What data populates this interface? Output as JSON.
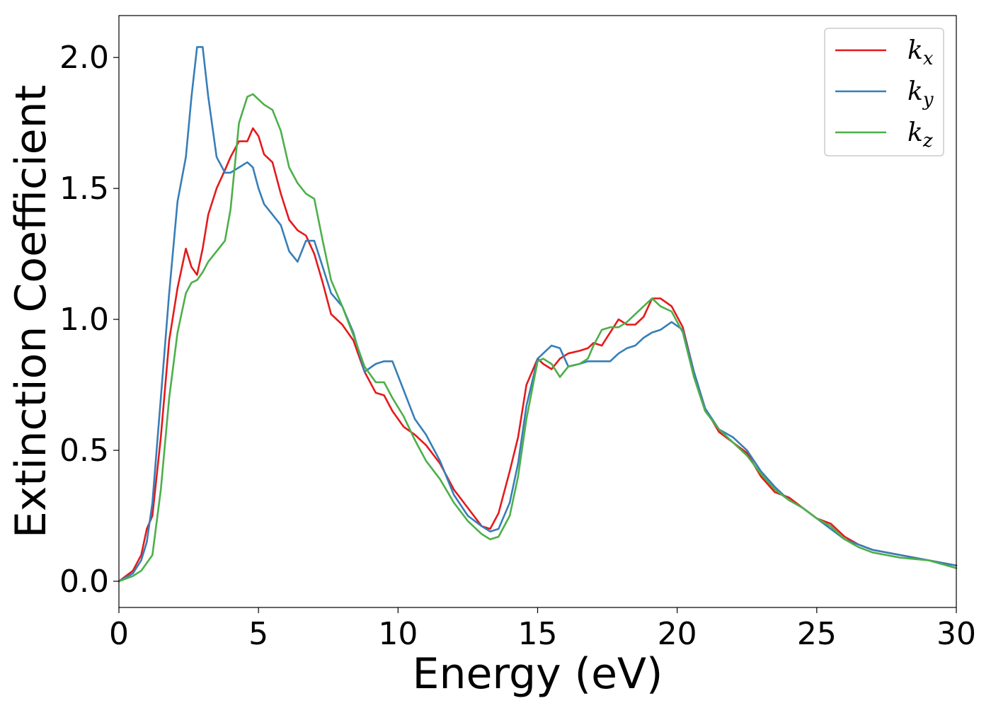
{
  "chart_data": {
    "type": "line",
    "title": "",
    "xlabel": "Energy (eV)",
    "ylabel": "Extinction Coefficient",
    "xlim": [
      0,
      30
    ],
    "ylim": [
      -0.1,
      2.16
    ],
    "xticks": [
      0,
      5,
      10,
      15,
      20,
      25,
      30
    ],
    "xtick_labels": [
      "0",
      "5",
      "10",
      "15",
      "20",
      "25",
      "30"
    ],
    "yticks": [
      0.0,
      0.5,
      1.0,
      1.5,
      2.0
    ],
    "ytick_labels": [
      "0.0",
      "0.5",
      "1.0",
      "1.5",
      "2.0"
    ],
    "grid": false,
    "legend_position": "top-right",
    "series": [
      {
        "name": "k",
        "subscript": "x",
        "color": "#e41a1c",
        "x": [
          0,
          0.5,
          0.8,
          1.0,
          1.2,
          1.5,
          1.8,
          2.1,
          2.4,
          2.6,
          2.8,
          3.0,
          3.2,
          3.5,
          3.8,
          4.0,
          4.3,
          4.6,
          4.8,
          5.0,
          5.2,
          5.5,
          5.8,
          6.1,
          6.4,
          6.7,
          7.0,
          7.3,
          7.6,
          8.0,
          8.4,
          8.8,
          9.2,
          9.5,
          9.8,
          10.2,
          10.6,
          11.0,
          11.5,
          12.0,
          12.5,
          13.0,
          13.3,
          13.6,
          14.0,
          14.3,
          14.6,
          15.0,
          15.2,
          15.5,
          15.8,
          16.1,
          16.5,
          16.8,
          17.0,
          17.3,
          17.6,
          17.9,
          18.2,
          18.5,
          18.8,
          19.1,
          19.4,
          19.8,
          20.2,
          20.6,
          21.0,
          21.5,
          22.0,
          22.5,
          23.0,
          23.5,
          24.0,
          24.5,
          25.0,
          25.5,
          26.0,
          26.5,
          27.0,
          28.0,
          29.0,
          30.0
        ],
        "values": [
          0.0,
          0.04,
          0.1,
          0.2,
          0.25,
          0.55,
          0.92,
          1.12,
          1.27,
          1.2,
          1.17,
          1.27,
          1.4,
          1.5,
          1.57,
          1.62,
          1.68,
          1.68,
          1.73,
          1.7,
          1.63,
          1.6,
          1.48,
          1.38,
          1.34,
          1.32,
          1.25,
          1.14,
          1.02,
          0.98,
          0.92,
          0.8,
          0.72,
          0.71,
          0.65,
          0.59,
          0.56,
          0.52,
          0.45,
          0.35,
          0.28,
          0.21,
          0.2,
          0.26,
          0.42,
          0.55,
          0.75,
          0.85,
          0.83,
          0.81,
          0.85,
          0.87,
          0.88,
          0.89,
          0.91,
          0.9,
          0.95,
          1.0,
          0.98,
          0.98,
          1.01,
          1.08,
          1.08,
          1.05,
          0.97,
          0.8,
          0.66,
          0.57,
          0.53,
          0.49,
          0.4,
          0.34,
          0.32,
          0.28,
          0.24,
          0.22,
          0.17,
          0.14,
          0.12,
          0.1,
          0.08,
          0.06
        ]
      },
      {
        "name": "k",
        "subscript": "y",
        "color": "#377eb8",
        "x": [
          0,
          0.5,
          0.8,
          1.0,
          1.2,
          1.5,
          1.8,
          2.1,
          2.4,
          2.6,
          2.8,
          3.0,
          3.2,
          3.5,
          3.8,
          4.0,
          4.3,
          4.6,
          4.8,
          5.0,
          5.2,
          5.5,
          5.8,
          6.1,
          6.4,
          6.7,
          7.0,
          7.3,
          7.6,
          8.0,
          8.4,
          8.8,
          9.2,
          9.5,
          9.8,
          10.2,
          10.6,
          11.0,
          11.5,
          12.0,
          12.5,
          13.0,
          13.3,
          13.6,
          14.0,
          14.3,
          14.6,
          15.0,
          15.2,
          15.5,
          15.8,
          16.1,
          16.5,
          16.8,
          17.0,
          17.3,
          17.6,
          17.9,
          18.2,
          18.5,
          18.8,
          19.1,
          19.4,
          19.8,
          20.2,
          20.6,
          21.0,
          21.5,
          22.0,
          22.5,
          23.0,
          23.5,
          24.0,
          24.5,
          25.0,
          25.5,
          26.0,
          26.5,
          27.0,
          28.0,
          29.0,
          30.0
        ],
        "values": [
          0.0,
          0.03,
          0.08,
          0.15,
          0.3,
          0.7,
          1.1,
          1.45,
          1.62,
          1.85,
          2.04,
          2.04,
          1.85,
          1.62,
          1.56,
          1.56,
          1.58,
          1.6,
          1.58,
          1.5,
          1.44,
          1.4,
          1.36,
          1.26,
          1.22,
          1.3,
          1.3,
          1.2,
          1.1,
          1.05,
          0.95,
          0.8,
          0.83,
          0.84,
          0.84,
          0.73,
          0.62,
          0.56,
          0.46,
          0.33,
          0.25,
          0.21,
          0.19,
          0.2,
          0.3,
          0.45,
          0.67,
          0.85,
          0.87,
          0.9,
          0.89,
          0.82,
          0.83,
          0.84,
          0.84,
          0.84,
          0.84,
          0.87,
          0.89,
          0.9,
          0.93,
          0.95,
          0.96,
          0.99,
          0.96,
          0.8,
          0.66,
          0.58,
          0.55,
          0.5,
          0.42,
          0.36,
          0.31,
          0.28,
          0.24,
          0.2,
          0.16,
          0.14,
          0.12,
          0.1,
          0.08,
          0.06
        ]
      },
      {
        "name": "k",
        "subscript": "z",
        "color": "#4daf4a",
        "x": [
          0,
          0.5,
          0.8,
          1.0,
          1.2,
          1.5,
          1.8,
          2.1,
          2.4,
          2.6,
          2.8,
          3.0,
          3.2,
          3.5,
          3.8,
          4.0,
          4.3,
          4.6,
          4.8,
          5.0,
          5.2,
          5.5,
          5.8,
          6.1,
          6.4,
          6.7,
          7.0,
          7.3,
          7.6,
          8.0,
          8.4,
          8.8,
          9.2,
          9.5,
          9.8,
          10.2,
          10.6,
          11.0,
          11.5,
          12.0,
          12.5,
          13.0,
          13.3,
          13.6,
          14.0,
          14.3,
          14.6,
          15.0,
          15.2,
          15.5,
          15.8,
          16.1,
          16.5,
          16.8,
          17.0,
          17.3,
          17.6,
          17.9,
          18.2,
          18.5,
          18.8,
          19.1,
          19.4,
          19.8,
          20.2,
          20.6,
          21.0,
          21.5,
          22.0,
          22.5,
          23.0,
          23.5,
          24.0,
          24.5,
          25.0,
          25.5,
          26.0,
          26.5,
          27.0,
          28.0,
          29.0,
          30.0
        ],
        "values": [
          0.0,
          0.02,
          0.04,
          0.07,
          0.1,
          0.35,
          0.7,
          0.95,
          1.1,
          1.14,
          1.15,
          1.18,
          1.22,
          1.26,
          1.3,
          1.42,
          1.75,
          1.85,
          1.86,
          1.84,
          1.82,
          1.8,
          1.72,
          1.58,
          1.52,
          1.48,
          1.46,
          1.3,
          1.15,
          1.05,
          0.94,
          0.82,
          0.76,
          0.76,
          0.7,
          0.63,
          0.54,
          0.46,
          0.39,
          0.3,
          0.23,
          0.18,
          0.16,
          0.17,
          0.25,
          0.4,
          0.62,
          0.84,
          0.85,
          0.83,
          0.78,
          0.82,
          0.83,
          0.85,
          0.9,
          0.96,
          0.97,
          0.97,
          0.99,
          1.02,
          1.05,
          1.08,
          1.05,
          1.03,
          0.95,
          0.78,
          0.65,
          0.58,
          0.53,
          0.48,
          0.41,
          0.35,
          0.31,
          0.28,
          0.24,
          0.21,
          0.16,
          0.13,
          0.11,
          0.09,
          0.08,
          0.05
        ]
      }
    ]
  }
}
